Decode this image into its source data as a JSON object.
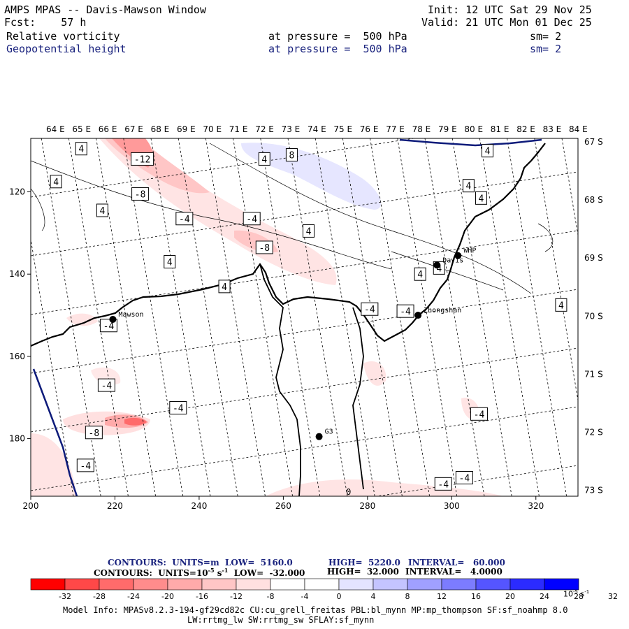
{
  "header": {
    "title": "AMPS MPAS -- Davis-Mawson Window",
    "fcst": "Fcst:    57 h",
    "init": "Init: 12 UTC Sat 29 Nov 25",
    "valid": "Valid: 21 UTC Mon 01 Dec 25",
    "field1": "Relative vorticity",
    "field1_level": "at pressure =  500 hPa",
    "field1_sm": "sm= 2",
    "field2": "Geopotential height",
    "field2_level": "at pressure =  500 hPa",
    "field2_sm": "sm= 2"
  },
  "colors": {
    "negative": [
      "#ff0000",
      "#ff4848",
      "#ff6b6b",
      "#ff8c8c",
      "#ffaaaa",
      "#ffc6c6",
      "#ffe0e0"
    ],
    "positive": [
      "#e4e4ff",
      "#c4c4ff",
      "#a0a0ff",
      "#7c7cff",
      "#5555ff",
      "#2b2bff",
      "#0000ff"
    ],
    "coast": "#000000",
    "geo_contour": "#000000",
    "ice_edge": "#0d1b7a"
  },
  "chart_data": {
    "type": "map",
    "top_lon_labels": [
      "64 E",
      "65 E",
      "66 E",
      "67 E",
      "68 E",
      "69 E",
      "70 E",
      "71 E",
      "72 E",
      "73 E",
      "74 E",
      "75 E",
      "76 E",
      "77 E",
      "78 E",
      "79 E",
      "80 E",
      "81 E",
      "82 E",
      "83 E",
      "84 E"
    ],
    "right_lat_labels": [
      "67 S",
      "68 S",
      "69 S",
      "70 S",
      "71 S",
      "72 S",
      "73 S"
    ],
    "x_ticks": [
      "200",
      "220",
      "240",
      "260",
      "280",
      "300",
      "320"
    ],
    "y_ticks": [
      "120",
      "140",
      "160",
      "180"
    ],
    "stations": [
      {
        "name": "Mawson",
        "x": 219.5,
        "y": 151
      },
      {
        "name": "Davis",
        "x": 296.5,
        "y": 137.8
      },
      {
        "name": "WHP",
        "x": 301.5,
        "y": 135.5
      },
      {
        "name": "Zhongshan",
        "x": 292,
        "y": 150
      },
      {
        "name": "G3",
        "x": 268.5,
        "y": 179.5
      }
    ],
    "vorticity_labels": [
      {
        "text": "-12",
        "x": 226.5,
        "y": 112
      },
      {
        "text": "-8",
        "x": 226,
        "y": 120.5
      },
      {
        "text": "-4",
        "x": 236.5,
        "y": 126.5
      },
      {
        "text": "-4",
        "x": 252.5,
        "y": 126.5
      },
      {
        "text": "-8",
        "x": 255.5,
        "y": 133.5
      },
      {
        "text": "-4",
        "x": 280.5,
        "y": 148.5
      },
      {
        "text": "-4",
        "x": 289,
        "y": 149
      },
      {
        "text": "-4",
        "x": 218.5,
        "y": 152.5
      },
      {
        "text": "-4",
        "x": 218,
        "y": 167
      },
      {
        "text": "-4",
        "x": 235,
        "y": 172.5
      },
      {
        "text": "-8",
        "x": 215,
        "y": 178.5
      },
      {
        "text": "-4",
        "x": 213,
        "y": 186.5
      },
      {
        "text": "-4",
        "x": 306.5,
        "y": 174
      },
      {
        "text": "-4",
        "x": 303,
        "y": 189.5
      },
      {
        "text": "-4",
        "x": 298,
        "y": 191
      }
    ],
    "height_labels": [
      {
        "text": "4",
        "x": 212,
        "y": 109.5
      },
      {
        "text": "4",
        "x": 206,
        "y": 117.5
      },
      {
        "text": "4",
        "x": 217,
        "y": 124.5
      },
      {
        "text": "4",
        "x": 233,
        "y": 137
      },
      {
        "text": "4",
        "x": 246,
        "y": 143
      },
      {
        "text": "4",
        "x": 255.5,
        "y": 112
      },
      {
        "text": "8",
        "x": 262,
        "y": 111
      },
      {
        "text": "4",
        "x": 266,
        "y": 129.5
      },
      {
        "text": "4",
        "x": 292.5,
        "y": 140
      },
      {
        "text": "4",
        "x": 297,
        "y": 138.5
      },
      {
        "text": "4",
        "x": 308.5,
        "y": 110
      },
      {
        "text": "4",
        "x": 304,
        "y": 118.5
      },
      {
        "text": "4",
        "x": 307,
        "y": 121.5
      },
      {
        "text": "4",
        "x": 326,
        "y": 147.5
      }
    ],
    "small_label": {
      "text": "0",
      "x": 275.5,
      "y": 193
    }
  },
  "colorbar": {
    "line1": {
      "label": "CONTOURS:  UNITS=m  LOW=  5160.0",
      "high": "HIGH=  5220.0",
      "interval": "INTERVAL=   60.000"
    },
    "line2": {
      "label": "CONTOURS:  UNITS=10",
      "exp": "-5",
      "rest": " s",
      "exp2": "-1",
      "low": "  LOW=  -32.000",
      "high": "HIGH=  32.000",
      "interval": "INTERVAL=   4.0000"
    },
    "ticks": [
      "-32",
      "-28",
      "-24",
      "-20",
      "-16",
      "-12",
      "-8",
      "-4",
      "0",
      "4",
      "8",
      "12",
      "16",
      "20",
      "24",
      "28",
      "32"
    ],
    "units": "10",
    "units_exp": "-5",
    "units_rest": " s",
    "units_exp2": "-1"
  },
  "model_info": {
    "line1": "Model Info: MPASv8.2.3-194-gf29cd82c CU:cu_grell_freitas PBL:bl_mynn MP:mp_thompson SF:sf_noahmp 8.0",
    "line2": "LW:rrtmg_lw SW:rrtmg_sw SFLAY:sf_mynn"
  }
}
